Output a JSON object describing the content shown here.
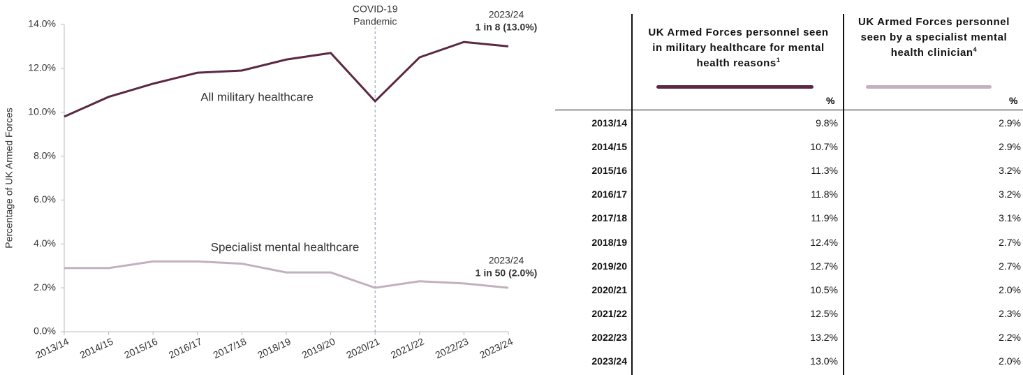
{
  "chart_data": {
    "type": "line",
    "ylabel": "Percentage of UK Armed Forces",
    "categories": [
      "2013/14",
      "2014/15",
      "2015/16",
      "2016/17",
      "2017/18",
      "2018/19",
      "2019/20",
      "2020/21",
      "2021/22",
      "2022/23",
      "2023/24"
    ],
    "series": [
      {
        "name": "All military healthcare",
        "color": "#5a2843",
        "values": [
          9.8,
          10.7,
          11.3,
          11.8,
          11.9,
          12.4,
          12.7,
          10.5,
          12.5,
          13.2,
          13.0
        ]
      },
      {
        "name": "Specialist mental healthcare",
        "color": "#c2b1bd",
        "values": [
          2.9,
          2.9,
          3.2,
          3.2,
          3.1,
          2.7,
          2.7,
          2.0,
          2.3,
          2.2,
          2.0
        ]
      }
    ],
    "ylim": [
      0,
      14
    ],
    "yticks": [
      {
        "value": 0,
        "label": "0.0%"
      },
      {
        "value": 2,
        "label": "2.0%"
      },
      {
        "value": 4,
        "label": "4.0%"
      },
      {
        "value": 6,
        "label": "6.0%"
      },
      {
        "value": 8,
        "label": "8.0%"
      },
      {
        "value": 10,
        "label": "10.0%"
      },
      {
        "value": 12,
        "label": "12.0%"
      },
      {
        "value": 14,
        "label": "14.0%"
      }
    ],
    "grid": false,
    "annotations": [
      {
        "lines": [
          "COVID-19",
          "Pandemic"
        ]
      },
      {
        "lines": [
          "2023/24",
          "1 in 8 (13.0%)"
        ]
      },
      {
        "lines": [
          "2023/24",
          "1 in 50 (2.0%)"
        ]
      }
    ]
  },
  "table": {
    "header": [
      {
        "text": "UK Armed Forces personnel seen in military healthcare for mental health reasons",
        "note": "1",
        "unit": "%"
      },
      {
        "text": "UK Armed Forces personnel seen by a specialist mental health clinician",
        "note": "4",
        "unit": "%"
      }
    ],
    "rows": [
      [
        "2013/14",
        "9.8%",
        "2.9%"
      ],
      [
        "2014/15",
        "10.7%",
        "2.9%"
      ],
      [
        "2015/16",
        "11.3%",
        "3.2%"
      ],
      [
        "2016/17",
        "11.8%",
        "3.2%"
      ],
      [
        "2017/18",
        "11.9%",
        "3.1%"
      ],
      [
        "2018/19",
        "12.4%",
        "2.7%"
      ],
      [
        "2019/20",
        "12.7%",
        "2.7%"
      ],
      [
        "2020/21",
        "10.5%",
        "2.0%"
      ],
      [
        "2021/22",
        "12.5%",
        "2.3%"
      ],
      [
        "2022/23",
        "13.2%",
        "2.2%"
      ],
      [
        "2023/24",
        "13.0%",
        "2.0%"
      ]
    ]
  }
}
